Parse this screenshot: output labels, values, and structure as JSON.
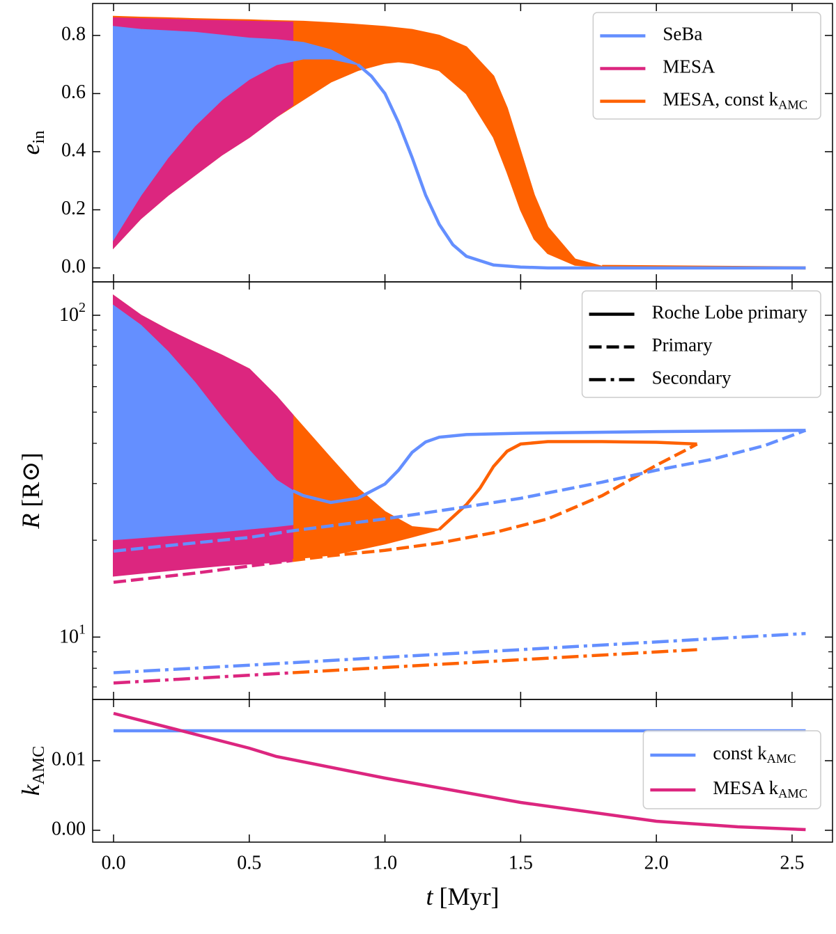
{
  "chart_data": [
    {
      "type": "line",
      "ylabel": {
        "main": "e",
        "sub": "in"
      },
      "ylim": [
        -0.048,
        0.91
      ],
      "yticks": [
        {
          "value": 0,
          "label": "0.0"
        },
        {
          "value": 0.2,
          "label": "0.2"
        },
        {
          "value": 0.4,
          "label": "0.4"
        },
        {
          "value": 0.6,
          "label": "0.6"
        },
        {
          "value": 0.8,
          "label": "0.8"
        }
      ],
      "series": [
        {
          "color": "#fe6100",
          "x": [
            0,
            0.1,
            0.2,
            0.3,
            0.4,
            0.5,
            0.6,
            0.7,
            0.8,
            0.9,
            1.0,
            1.05,
            1.1,
            1.2,
            1.3,
            1.4,
            1.45,
            1.5,
            1.55,
            1.6,
            1.7,
            1.8
          ],
          "values": [
            0.865,
            0.862,
            0.86,
            0.857,
            0.855,
            0.853,
            0.85,
            0.848,
            0.843,
            0.837,
            0.83,
            0.825,
            0.82,
            0.8,
            0.76,
            0.66,
            0.55,
            0.4,
            0.25,
            0.14,
            0.03,
            0.005
          ],
          "lower": [
            0.07,
            0.17,
            0.25,
            0.32,
            0.39,
            0.45,
            0.52,
            0.58,
            0.64,
            0.68,
            0.705,
            0.71,
            0.705,
            0.68,
            0.6,
            0.45,
            0.33,
            0.2,
            0.1,
            0.05,
            0.01,
            0.003
          ]
        },
        {
          "color": "#fe6100",
          "style": "solid",
          "x": [
            1.8,
            2.55
          ],
          "values": [
            0.005,
            0
          ]
        },
        {
          "color": "#dc267f",
          "x": [
            0,
            0.1,
            0.2,
            0.3,
            0.4,
            0.5,
            0.6,
            0.66
          ],
          "values": [
            0.86,
            0.857,
            0.855,
            0.852,
            0.85,
            0.848,
            0.846,
            0.845
          ],
          "lower": [
            0.07,
            0.17,
            0.25,
            0.32,
            0.39,
            0.45,
            0.52,
            0.56
          ]
        },
        {
          "color": "#648fff",
          "x": [
            0,
            0.1,
            0.2,
            0.3,
            0.4,
            0.5,
            0.6,
            0.7,
            0.8,
            0.9
          ],
          "values": [
            0.83,
            0.82,
            0.815,
            0.81,
            0.8,
            0.79,
            0.785,
            0.775,
            0.75,
            0.7
          ],
          "lower": [
            0.1,
            0.25,
            0.38,
            0.49,
            0.58,
            0.65,
            0.7,
            0.72,
            0.72,
            0.7
          ]
        },
        {
          "color": "#648fff",
          "style": "solid",
          "x": [
            0.9,
            0.95,
            1.0,
            1.05,
            1.1,
            1.15,
            1.2,
            1.25,
            1.3,
            1.4,
            1.5,
            1.6,
            2.0,
            2.55
          ],
          "values": [
            0.7,
            0.66,
            0.6,
            0.5,
            0.38,
            0.25,
            0.15,
            0.08,
            0.04,
            0.01,
            0.003,
            0,
            0,
            0
          ]
        }
      ],
      "legend": {
        "loc": "upper right",
        "entries": [
          {
            "label": "SeBa",
            "color": "#648fff",
            "style": "solid"
          },
          {
            "label": "MESA",
            "color": "#dc267f",
            "style": "solid"
          },
          {
            "label": {
              "main": "MESA, const k",
              "sub": "AMC"
            },
            "color": "#fe6100",
            "style": "solid"
          }
        ]
      }
    },
    {
      "type": "line",
      "ylabel": {
        "main": "R",
        "rest": "[R⊙]"
      },
      "yscale": "log",
      "ylim": [
        6.4,
        127
      ],
      "yticks": [
        {
          "value": 10,
          "label": "10",
          "exponent": "1"
        },
        {
          "value": 100,
          "label": "10",
          "exponent": "2"
        }
      ],
      "series": [
        {
          "color": "#fe6100",
          "x": [
            0,
            0.1,
            0.2,
            0.3,
            0.4,
            0.5,
            0.6,
            0.66,
            0.8,
            0.9,
            1.0,
            1.1,
            1.2
          ],
          "values": [
            115,
            100,
            90,
            82,
            75,
            68,
            56,
            49,
            36,
            29,
            24.5,
            22,
            21.6
          ],
          "lower": [
            15.9,
            16.1,
            16.4,
            16.7,
            17,
            17.2,
            17.4,
            17.5,
            18,
            18.7,
            19.5,
            20.5,
            21.6
          ]
        },
        {
          "color": "#fe6100",
          "style": "solid",
          "x": [
            1.2,
            1.3,
            1.35,
            1.4,
            1.45,
            1.5,
            1.6,
            1.8,
            2.0,
            2.15
          ],
          "values": [
            21.6,
            25.8,
            29,
            33.9,
            37.8,
            39.8,
            40.5,
            40.5,
            40.3,
            39.8
          ]
        },
        {
          "color": "#dc267f",
          "x": [
            0,
            0.1,
            0.2,
            0.3,
            0.4,
            0.5,
            0.6,
            0.66
          ],
          "values": [
            115,
            100,
            90,
            82,
            75,
            68,
            56,
            49
          ],
          "lower": [
            15.5,
            15.8,
            16.1,
            16.4,
            16.7,
            16.9,
            17.1,
            17.3
          ]
        },
        {
          "color": "#648fff",
          "x": [
            0,
            0.1,
            0.2,
            0.3,
            0.4,
            0.5,
            0.6,
            0.66
          ],
          "values": [
            107,
            93,
            77,
            61.7,
            48,
            38,
            30.7,
            28.5
          ],
          "lower": [
            20.1,
            20.4,
            20.7,
            21,
            21.3,
            21.7,
            22.1,
            22.4
          ]
        },
        {
          "color": "#648fff",
          "style": "solid",
          "x": [
            0.66,
            0.7,
            0.8,
            0.9,
            1.0,
            1.05,
            1.1,
            1.15,
            1.2,
            1.3,
            1.5,
            2.0,
            2.55
          ],
          "values": [
            28.5,
            27.5,
            26.2,
            27,
            29.9,
            33,
            37.5,
            40.4,
            41.8,
            42.6,
            43,
            43.5,
            43.9
          ]
        },
        {
          "color": "#dc267f",
          "style": "dashed",
          "x": [
            0,
            0.3,
            0.66
          ],
          "values": [
            14.8,
            15.8,
            17.3
          ]
        },
        {
          "color": "#fe6100",
          "style": "dashed",
          "x": [
            0.66,
            0.8,
            1.0,
            1.2,
            1.4,
            1.6,
            1.8,
            1.9,
            2.0,
            2.1,
            2.15
          ],
          "values": [
            17.3,
            17.9,
            18.6,
            19.6,
            21.1,
            23.3,
            27.5,
            30.7,
            34.2,
            37.8,
            39.8
          ]
        },
        {
          "color": "#648fff",
          "style": "dashed",
          "x": [
            0,
            0.5,
            0.66,
            1.0,
            1.3,
            1.5,
            1.8,
            2.0,
            2.2,
            2.4,
            2.55
          ],
          "values": [
            18.5,
            20.4,
            21.4,
            23.3,
            25.4,
            27,
            30.3,
            33,
            35.6,
            39.4,
            43.9
          ]
        },
        {
          "color": "#dc267f",
          "style": "dashdot",
          "x": [
            0,
            0.66
          ],
          "values": [
            7.2,
            7.75
          ]
        },
        {
          "color": "#fe6100",
          "style": "dashdot",
          "x": [
            0.66,
            2.15
          ],
          "values": [
            7.75,
            9.14
          ]
        },
        {
          "color": "#648fff",
          "style": "dashdot",
          "x": [
            0,
            0.5,
            1.0,
            1.5,
            2.0,
            2.55
          ],
          "values": [
            7.75,
            8.18,
            8.65,
            9.14,
            9.66,
            10.26
          ]
        }
      ],
      "legend": {
        "loc": "upper right",
        "entries": [
          {
            "label": "Roche Lobe primary",
            "color": "#000000",
            "style": "solid"
          },
          {
            "label": "Primary",
            "color": "#000000",
            "style": "dashed"
          },
          {
            "label": "Secondary",
            "color": "#000000",
            "style": "dashdot"
          }
        ]
      }
    },
    {
      "type": "line",
      "ylabel": {
        "main": "k",
        "sub": "AMC"
      },
      "xlabel": {
        "main": "t",
        "rest": "[Myr]"
      },
      "xlim": [
        -0.077,
        2.649
      ],
      "xticks": [
        {
          "value": 0,
          "label": "0.0"
        },
        {
          "value": 0.5,
          "label": "0.5"
        },
        {
          "value": 1.0,
          "label": "1.0"
        },
        {
          "value": 1.5,
          "label": "1.5"
        },
        {
          "value": 2.0,
          "label": "2.0"
        },
        {
          "value": 2.5,
          "label": "2.5"
        }
      ],
      "ylim": [
        -0.0017,
        0.0188
      ],
      "yticks": [
        {
          "value": 0,
          "label": "0.00"
        },
        {
          "value": 0.01,
          "label": "0.01"
        }
      ],
      "series": [
        {
          "color": "#648fff",
          "style": "solid",
          "x": [
            0,
            2.55
          ],
          "values": [
            0.0143,
            0.0143
          ]
        },
        {
          "color": "#dc267f",
          "style": "solid",
          "x": [
            0,
            0.25,
            0.5,
            0.6,
            1.0,
            1.5,
            2.0,
            2.3,
            2.55
          ],
          "values": [
            0.0168,
            0.0143,
            0.0118,
            0.0106,
            0.0075,
            0.004,
            0.0013,
            0.0005,
            0.0001
          ]
        }
      ],
      "legend": {
        "loc": "lower right",
        "entries": [
          {
            "label": {
              "main": "const k",
              "sub": "AMC"
            },
            "color": "#648fff",
            "style": "solid"
          },
          {
            "label": {
              "main": "MESA k",
              "sub": "AMC"
            },
            "color": "#dc267f",
            "style": "solid"
          }
        ]
      }
    }
  ]
}
